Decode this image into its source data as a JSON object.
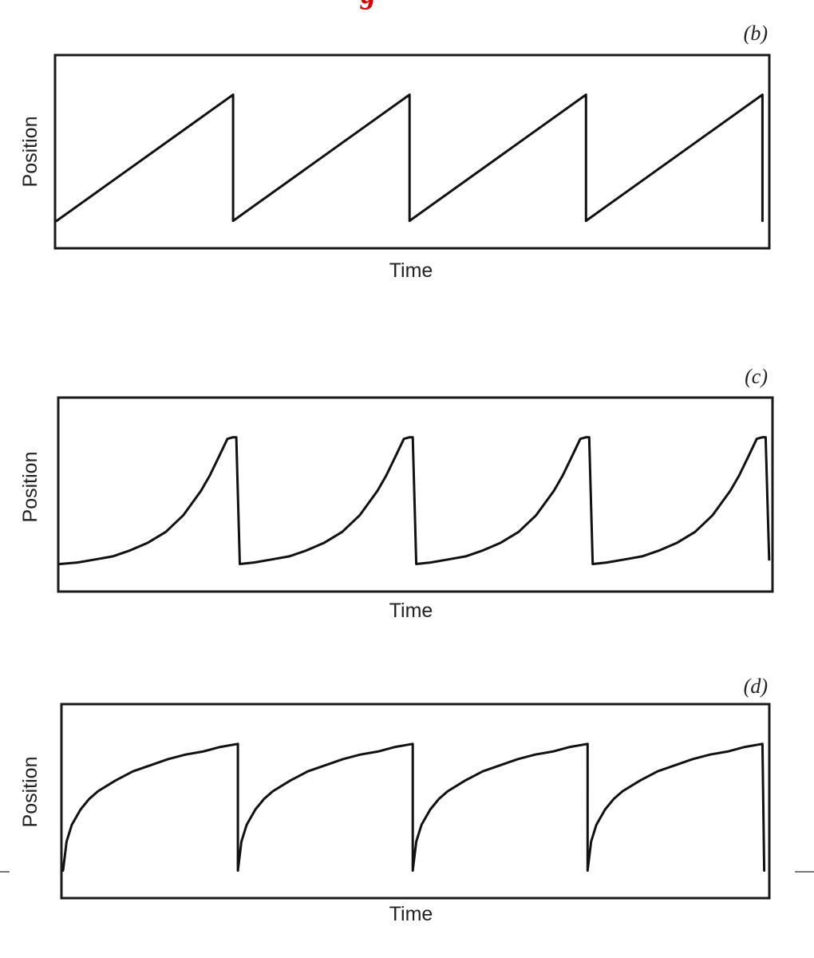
{
  "header_fragment": "g",
  "chart_data": [
    {
      "type": "line",
      "panel_label": "(b)",
      "title": "",
      "xlabel": "Time",
      "ylabel": "Position",
      "shape": "linear ramp with instantaneous reset (sawtooth)",
      "periods": 4,
      "xlim": [
        0,
        4.03
      ],
      "ylim": [
        0,
        1.25
      ],
      "grid": false,
      "series": [
        {
          "x": [
            0,
            1,
            1,
            2,
            2,
            3,
            3,
            4,
            4
          ],
          "y": [
            0.17,
            1.0,
            0.17,
            1.0,
            0.17,
            1.0,
            0.17,
            1.0,
            0.17
          ]
        }
      ],
      "line_color": "#111111"
    },
    {
      "type": "line",
      "panel_label": "(c)",
      "title": "",
      "xlabel": "Time",
      "ylabel": "Position",
      "shape": "slow start, accelerating rise to sharp peak, then reset",
      "periods": 4,
      "xlim": [
        0,
        4.03
      ],
      "ylim": [
        0,
        1.25
      ],
      "grid": false,
      "series": [
        {
          "x": [
            0,
            0.1,
            0.2,
            0.3,
            0.4,
            0.5,
            0.6,
            0.7,
            0.8,
            0.85,
            0.9,
            0.95,
            0.98,
            1.0,
            1.02,
            1.1,
            1.2,
            1.3,
            1.4,
            1.5,
            1.6,
            1.7,
            1.8,
            1.85,
            1.9,
            1.95,
            1.98,
            2.0,
            2.02,
            2.1,
            2.2,
            2.3,
            2.4,
            2.5,
            2.6,
            2.7,
            2.8,
            2.85,
            2.9,
            2.95,
            2.98,
            3.0,
            3.02,
            3.1,
            3.2,
            3.3,
            3.4,
            3.5,
            3.6,
            3.7,
            3.8,
            3.85,
            3.9,
            3.95,
            3.98,
            4.0,
            4.02
          ],
          "y": [
            0.17,
            0.18,
            0.2,
            0.22,
            0.26,
            0.31,
            0.38,
            0.49,
            0.65,
            0.75,
            0.87,
            0.99,
            1.0,
            1.0,
            0.17,
            0.18,
            0.2,
            0.22,
            0.26,
            0.31,
            0.38,
            0.49,
            0.65,
            0.75,
            0.87,
            0.99,
            1.0,
            1.0,
            0.17,
            0.18,
            0.2,
            0.22,
            0.26,
            0.31,
            0.38,
            0.49,
            0.65,
            0.75,
            0.87,
            0.99,
            1.0,
            1.0,
            0.17,
            0.18,
            0.2,
            0.22,
            0.26,
            0.31,
            0.38,
            0.49,
            0.65,
            0.75,
            0.87,
            0.99,
            1.0,
            1.0,
            0.2
          ]
        }
      ],
      "line_color": "#111111"
    },
    {
      "type": "line",
      "panel_label": "(d)",
      "title": "",
      "xlabel": "Time",
      "ylabel": "Position",
      "shape": "rapid initial rise decelerating to plateau, then reset",
      "periods": 4,
      "xlim": [
        0,
        4.03
      ],
      "ylim": [
        0,
        1.25
      ],
      "grid": false,
      "series": [
        {
          "x": [
            0,
            0.02,
            0.05,
            0.1,
            0.15,
            0.2,
            0.3,
            0.4,
            0.5,
            0.6,
            0.7,
            0.8,
            0.9,
            1.0,
            1.0,
            1.02,
            1.05,
            1.1,
            1.15,
            1.2,
            1.3,
            1.4,
            1.5,
            1.6,
            1.7,
            1.8,
            1.9,
            2.0,
            2.0,
            2.02,
            2.05,
            2.1,
            2.15,
            2.2,
            2.3,
            2.4,
            2.5,
            2.6,
            2.7,
            2.8,
            2.9,
            3.0,
            3.0,
            3.02,
            3.05,
            3.1,
            3.15,
            3.2,
            3.3,
            3.4,
            3.5,
            3.6,
            3.7,
            3.8,
            3.9,
            4.0,
            4.01
          ],
          "y": [
            0.17,
            0.36,
            0.47,
            0.57,
            0.64,
            0.69,
            0.76,
            0.82,
            0.86,
            0.9,
            0.93,
            0.95,
            0.98,
            1.0,
            0.17,
            0.36,
            0.47,
            0.57,
            0.64,
            0.69,
            0.76,
            0.82,
            0.86,
            0.9,
            0.93,
            0.95,
            0.98,
            1.0,
            0.17,
            0.36,
            0.47,
            0.57,
            0.64,
            0.69,
            0.76,
            0.82,
            0.86,
            0.9,
            0.93,
            0.95,
            0.98,
            1.0,
            0.17,
            0.36,
            0.47,
            0.57,
            0.64,
            0.69,
            0.76,
            0.82,
            0.86,
            0.9,
            0.93,
            0.95,
            0.98,
            1.0,
            0.17
          ]
        }
      ],
      "line_color": "#111111"
    }
  ]
}
